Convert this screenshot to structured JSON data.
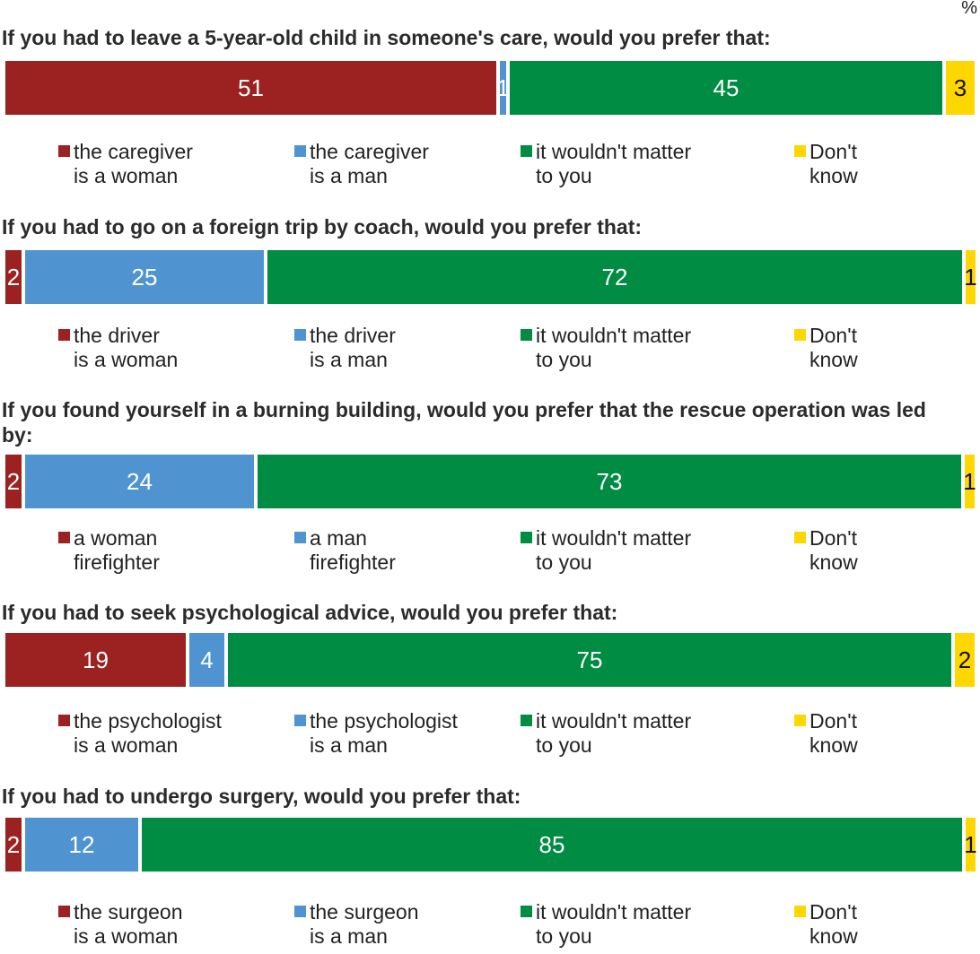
{
  "unit_label": "%",
  "colors": {
    "woman": "#9b2220",
    "man": "#4f94d0",
    "no_matter": "#008c42",
    "dont_know": "#ffd700"
  },
  "questions": [
    {
      "title": "If you had to leave a 5-year-old child in someone's care, would you prefer that:",
      "values": {
        "woman": 51,
        "man": 1,
        "no_matter": 45,
        "dont_know": 3
      },
      "labels": {
        "woman": "51",
        "man": "1",
        "no_matter": "45",
        "dont_know": "3"
      },
      "legend": {
        "woman": [
          "the caregiver",
          "is a woman"
        ],
        "man": [
          "the caregiver",
          "is a man"
        ],
        "no_matter": [
          "it wouldn't matter",
          "to you"
        ],
        "dont_know": [
          "Don't",
          "know"
        ]
      }
    },
    {
      "title": "If you had to go on a foreign trip by coach, would you prefer that:",
      "values": {
        "woman": 2,
        "man": 25,
        "no_matter": 72,
        "dont_know": 1
      },
      "labels": {
        "woman": "2",
        "man": "25",
        "no_matter": "72",
        "dont_know": "1"
      },
      "legend": {
        "woman": [
          "the driver",
          "is a woman"
        ],
        "man": [
          "the driver",
          "is a man"
        ],
        "no_matter": [
          "it wouldn't matter",
          "to you"
        ],
        "dont_know": [
          "Don't",
          "know"
        ]
      }
    },
    {
      "title": "If you found yourself in a burning building, would you prefer that the rescue operation was led by:",
      "values": {
        "woman": 2,
        "man": 24,
        "no_matter": 73,
        "dont_know": 1
      },
      "labels": {
        "woman": "2",
        "man": "24",
        "no_matter": "73",
        "dont_know": "1"
      },
      "legend": {
        "woman": [
          "a woman",
          "firefighter"
        ],
        "man": [
          "a man",
          "firefighter"
        ],
        "no_matter": [
          "it wouldn't matter",
          "to you"
        ],
        "dont_know": [
          "Don't",
          "know"
        ]
      }
    },
    {
      "title": "If you had to seek psychological advice, would you prefer that:",
      "values": {
        "woman": 19,
        "man": 4,
        "no_matter": 75,
        "dont_know": 2
      },
      "labels": {
        "woman": "19",
        "man": "4",
        "no_matter": "75",
        "dont_know": "2"
      },
      "legend": {
        "woman": [
          "the psychologist",
          "is a woman"
        ],
        "man": [
          "the psychologist",
          "is a man"
        ],
        "no_matter": [
          "it wouldn't matter",
          "to you"
        ],
        "dont_know": [
          "Don't",
          "know"
        ]
      }
    },
    {
      "title": "If you had to undergo surgery, would you prefer that:",
      "values": {
        "woman": 2,
        "man": 12,
        "no_matter": 85,
        "dont_know": 1
      },
      "labels": {
        "woman": "2",
        "man": "12",
        "no_matter": "85",
        "dont_know": "1"
      },
      "legend": {
        "woman": [
          "the surgeon",
          "is a woman"
        ],
        "man": [
          "the surgeon",
          "is a man"
        ],
        "no_matter": [
          "it wouldn't matter",
          "to you"
        ],
        "dont_know": [
          "Don't",
          "know"
        ]
      }
    }
  ],
  "chart_data": [
    {
      "type": "bar",
      "orientation": "horizontal-stacked-100",
      "title": "If you had to leave a 5-year-old child in someone's care, would you prefer that:",
      "categories": [
        "the caregiver is a woman",
        "the caregiver is a man",
        "it wouldn't matter to you",
        "Don't know"
      ],
      "values": [
        51,
        1,
        45,
        3
      ],
      "unit": "%"
    },
    {
      "type": "bar",
      "orientation": "horizontal-stacked-100",
      "title": "If you had to go on a foreign trip by coach, would you prefer that:",
      "categories": [
        "the driver is a woman",
        "the driver is a man",
        "it wouldn't matter to you",
        "Don't know"
      ],
      "values": [
        2,
        25,
        72,
        1
      ],
      "unit": "%"
    },
    {
      "type": "bar",
      "orientation": "horizontal-stacked-100",
      "title": "If you found yourself in a burning building, would you prefer that the rescue operation was led by:",
      "categories": [
        "a woman firefighter",
        "a man firefighter",
        "it wouldn't matter to you",
        "Don't know"
      ],
      "values": [
        2,
        24,
        73,
        1
      ],
      "unit": "%"
    },
    {
      "type": "bar",
      "orientation": "horizontal-stacked-100",
      "title": "If you had to seek psychological advice, would you prefer that:",
      "categories": [
        "the psychologist is a woman",
        "the psychologist is a man",
        "it wouldn't matter to you",
        "Don't know"
      ],
      "values": [
        19,
        4,
        75,
        2
      ],
      "unit": "%"
    },
    {
      "type": "bar",
      "orientation": "horizontal-stacked-100",
      "title": "If you had to undergo surgery, would you prefer that:",
      "categories": [
        "the surgeon is a woman",
        "the surgeon is a man",
        "it wouldn't matter to you",
        "Don't know"
      ],
      "values": [
        2,
        12,
        85,
        1
      ],
      "unit": "%"
    }
  ]
}
